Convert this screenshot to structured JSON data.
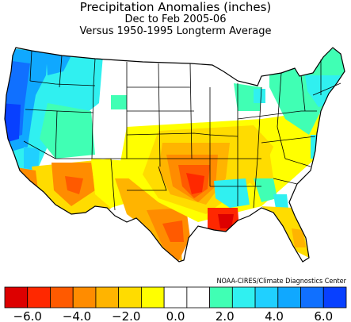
{
  "map": {
    "title": "Precipitation Anomalies (inches)",
    "subtitle": "Dec to Feb 2005-06",
    "baseline": "Versus 1950-1995 Longterm Average",
    "credit": "NOAA-CIRES/Climate Diagnostics Center"
  },
  "legend": {
    "bins": [
      {
        "color": "#dd0000"
      },
      {
        "color": "#ff2800"
      },
      {
        "color": "#ff5a00"
      },
      {
        "color": "#ff8c00"
      },
      {
        "color": "#ffb400"
      },
      {
        "color": "#ffdc00"
      },
      {
        "color": "#ffff00"
      },
      {
        "color": "#ffffff"
      },
      {
        "color": "#ffffff"
      },
      {
        "color": "#40ffb4"
      },
      {
        "color": "#30f0f0"
      },
      {
        "color": "#20d0ff"
      },
      {
        "color": "#10a8ff"
      },
      {
        "color": "#1070ff"
      },
      {
        "color": "#0840ff"
      }
    ],
    "tick_labels": [
      "-6.0",
      "-4.0",
      "-2.0",
      "0.0",
      "2.0",
      "4.0",
      "6.0"
    ]
  },
  "colors": {
    "dry_strong": "#dd0000",
    "dry": "#ff8c00",
    "dry_light": "#ffff00",
    "neutral": "#ffffff",
    "wet_light": "#40ffb4",
    "wet": "#30f0f0",
    "wet_strong": "#0840ff",
    "border": "#000000"
  }
}
